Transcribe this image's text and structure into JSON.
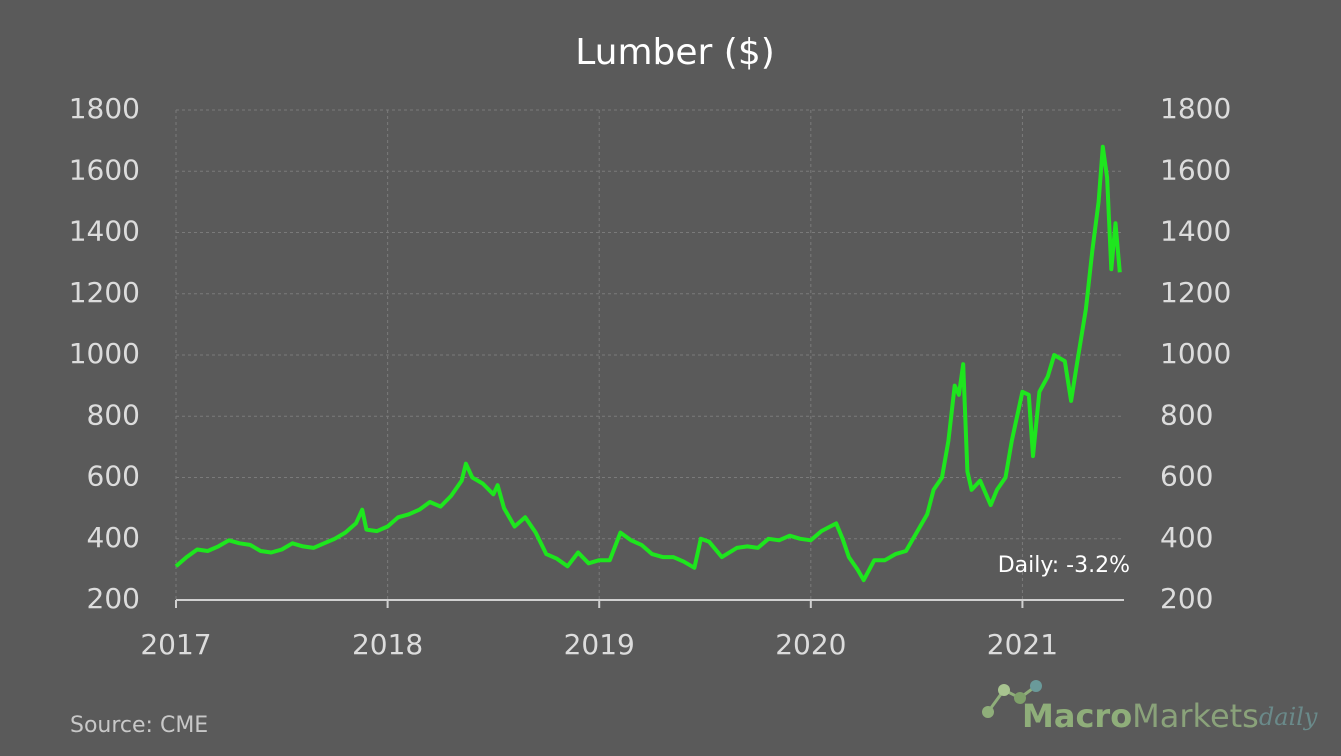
{
  "chart_data": {
    "type": "line",
    "title": "Lumber ($)",
    "x": [
      2017.0,
      2017.05,
      2017.1,
      2017.15,
      2017.2,
      2017.25,
      2017.3,
      2017.35,
      2017.4,
      2017.45,
      2017.5,
      2017.55,
      2017.6,
      2017.65,
      2017.7,
      2017.75,
      2017.8,
      2017.85,
      2017.88,
      2017.9,
      2017.95,
      2018.0,
      2018.05,
      2018.1,
      2018.15,
      2018.2,
      2018.25,
      2018.3,
      2018.35,
      2018.37,
      2018.4,
      2018.45,
      2018.5,
      2018.52,
      2018.55,
      2018.6,
      2018.65,
      2018.7,
      2018.75,
      2018.8,
      2018.85,
      2018.9,
      2018.95,
      2019.0,
      2019.05,
      2019.1,
      2019.15,
      2019.2,
      2019.25,
      2019.3,
      2019.35,
      2019.4,
      2019.45,
      2019.48,
      2019.52,
      2019.58,
      2019.65,
      2019.7,
      2019.75,
      2019.8,
      2019.85,
      2019.9,
      2019.95,
      2020.0,
      2020.05,
      2020.12,
      2020.15,
      2020.18,
      2020.22,
      2020.25,
      2020.3,
      2020.35,
      2020.4,
      2020.45,
      2020.5,
      2020.55,
      2020.58,
      2020.62,
      2020.65,
      2020.68,
      2020.7,
      2020.72,
      2020.74,
      2020.76,
      2020.8,
      2020.85,
      2020.88,
      2020.92,
      2020.95,
      2021.0,
      2021.03,
      2021.05,
      2021.08,
      2021.12,
      2021.15,
      2021.2,
      2021.23,
      2021.26,
      2021.3,
      2021.33,
      2021.36,
      2021.38,
      2021.4,
      2021.42,
      2021.44,
      2021.46
    ],
    "series": [
      {
        "name": "Lumber",
        "color": "#1ee61e",
        "values": [
          310,
          340,
          365,
          360,
          375,
          395,
          385,
          380,
          360,
          355,
          365,
          385,
          375,
          370,
          385,
          400,
          420,
          450,
          495,
          430,
          425,
          440,
          470,
          480,
          495,
          520,
          505,
          540,
          590,
          645,
          600,
          580,
          545,
          575,
          500,
          440,
          470,
          420,
          350,
          335,
          310,
          355,
          320,
          330,
          330,
          420,
          395,
          380,
          350,
          340,
          340,
          325,
          305,
          400,
          390,
          340,
          370,
          375,
          370,
          400,
          395,
          410,
          400,
          395,
          425,
          450,
          400,
          340,
          300,
          265,
          330,
          330,
          350,
          360,
          420,
          480,
          560,
          600,
          720,
          900,
          870,
          970,
          620,
          560,
          590,
          510,
          560,
          600,
          720,
          880,
          870,
          670,
          880,
          930,
          1000,
          980,
          850,
          980,
          1150,
          1340,
          1500,
          1680,
          1580,
          1280,
          1430,
          1270
        ]
      }
    ],
    "xlim": [
      2017,
      2021.48
    ],
    "xticks": [
      2017,
      2018,
      2019,
      2020,
      2021
    ],
    "ylim": [
      200,
      1800
    ],
    "yticks": [
      200,
      400,
      600,
      800,
      1000,
      1200,
      1400,
      1600,
      1800
    ],
    "y2lim": [
      200,
      1800
    ],
    "y2ticks": [
      200,
      400,
      600,
      800,
      1000,
      1200,
      1400,
      1600,
      1800
    ],
    "grid": true,
    "annotation": "Daily: -3.2%",
    "source": "Source: CME",
    "logo": {
      "part1": "Macro",
      "part2": "Markets",
      "part3": "daily"
    }
  }
}
